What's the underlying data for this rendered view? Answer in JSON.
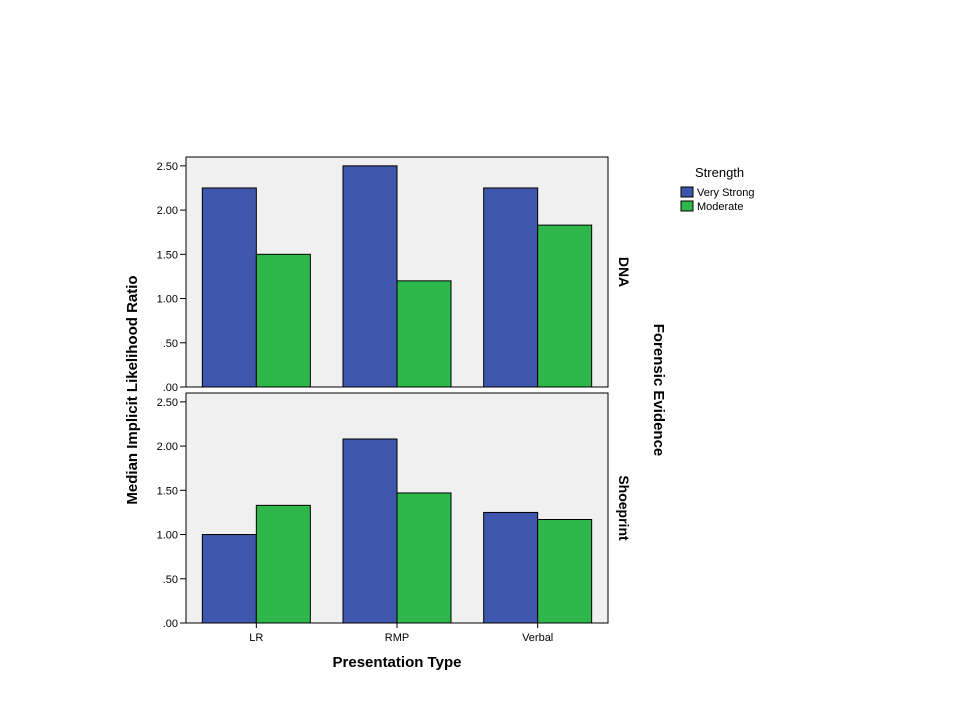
{
  "chart_data": {
    "type": "bar",
    "xlabel": "Presentation Type",
    "ylabel": "Median Implicit Likelihood Ratio",
    "facet_label": "Forensic Evidence",
    "categories": [
      "LR",
      "RMP",
      "Verbal"
    ],
    "ylim": [
      0,
      2.6
    ],
    "yticks": [
      0,
      0.5,
      1.0,
      1.5,
      2.0,
      2.5
    ],
    "ytick_labels": [
      ".00",
      ".50",
      "1.00",
      "1.50",
      "2.00",
      "2.50"
    ],
    "legend": {
      "title": "Strength",
      "placement": "top-right",
      "entries": [
        "Very Strong",
        "Moderate"
      ]
    },
    "colors": {
      "Very Strong": "#3e56ab",
      "Moderate": "#2eb84b",
      "panel_background": "#f0f0f0"
    },
    "panels": [
      {
        "label": "DNA",
        "series": [
          {
            "name": "Very Strong",
            "values": [
              2.25,
              2.5,
              2.25
            ]
          },
          {
            "name": "Moderate",
            "values": [
              1.5,
              1.2,
              1.83
            ]
          }
        ]
      },
      {
        "label": "Shoeprint",
        "series": [
          {
            "name": "Very Strong",
            "values": [
              1.0,
              2.08,
              1.25
            ]
          },
          {
            "name": "Moderate",
            "values": [
              1.33,
              1.47,
              1.17
            ]
          }
        ]
      }
    ]
  }
}
